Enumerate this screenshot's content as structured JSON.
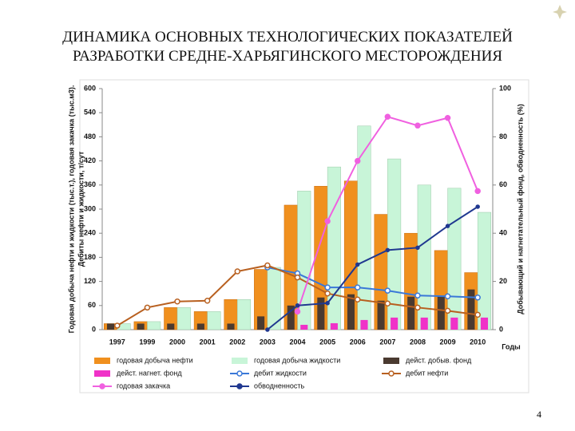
{
  "page_number": "4",
  "chart_data": {
    "type": "bar",
    "title": [
      "ДИНАМИКА ОСНОВНЫХ ТЕХНОЛОГИЧЕСКИХ ПОКАЗАТЕЛЕЙ",
      "РАЗРАБОТКИ СРЕДНЕ-ХАРЬЯГИНСКОГО МЕСТОРОЖДЕНИЯ"
    ],
    "y_label": [
      "Годовая добыча нефти и жидкости (тыс.т.), годовая закачка (тыс.м3).",
      "Дебиты нефти и жидкости, т/сут"
    ],
    "y2_label": "Добывающий и нагнетательный фонд, обводненность (%)",
    "x_label": "Годы",
    "categories": [
      "1997",
      "1999",
      "2000",
      "2001",
      "2002",
      "2003",
      "2004",
      "2005",
      "2006",
      "2007",
      "2008",
      "2009",
      "2010"
    ],
    "ylim": [
      0,
      600
    ],
    "yticks": [
      0,
      60,
      120,
      180,
      240,
      300,
      360,
      420,
      480,
      540,
      600
    ],
    "y2lim": [
      0,
      100
    ],
    "y2ticks": [
      0,
      20,
      40,
      60,
      80,
      100
    ],
    "series": [
      {
        "name": "годовая добыча нефти",
        "color": "#f0901e",
        "kind": "bar",
        "values": [
          15,
          20,
          55,
          45,
          75,
          150,
          310,
          357,
          370,
          287,
          240,
          197,
          142
        ]
      },
      {
        "name": "годовая добыча жидкости",
        "color": "#c8f5d8",
        "kind": "bar",
        "values": [
          15,
          20,
          55,
          45,
          75,
          155,
          345,
          405,
          507,
          425,
          360,
          352,
          292
        ]
      },
      {
        "name": "дейст. добыв. фонд",
        "color": "#4a3a30",
        "kind": "bar",
        "values": [
          15,
          15,
          15,
          15,
          15,
          33,
          60,
          80,
          88,
          72,
          82,
          82,
          100
        ]
      },
      {
        "name": "дейст. нагнет. фонд",
        "color": "#f032c8",
        "kind": "bar",
        "values": [
          null,
          null,
          null,
          null,
          null,
          null,
          12,
          16,
          24,
          30,
          30,
          30,
          30
        ]
      },
      {
        "name": "дебит жидкости",
        "color": "#3a78d8",
        "kind": "line",
        "values": [
          null,
          null,
          null,
          null,
          null,
          155,
          140,
          105,
          105,
          97,
          85,
          83,
          80
        ]
      },
      {
        "name": "дебит нефти",
        "color": "#b86020",
        "kind": "line",
        "values": [
          10,
          55,
          70,
          72,
          145,
          160,
          130,
          90,
          75,
          65,
          55,
          47,
          37
        ]
      },
      {
        "name": "годовая закачка",
        "color": "#f060e0",
        "kind": "line",
        "values": [
          null,
          null,
          null,
          null,
          null,
          null,
          45,
          270,
          420,
          530,
          508,
          527,
          345
        ]
      },
      {
        "name": "обводненность",
        "color": "#203890",
        "kind": "line",
        "axis": "y2",
        "values": [
          null,
          null,
          null,
          null,
          null,
          0,
          10,
          11,
          27,
          33,
          34,
          43,
          51
        ]
      }
    ]
  }
}
